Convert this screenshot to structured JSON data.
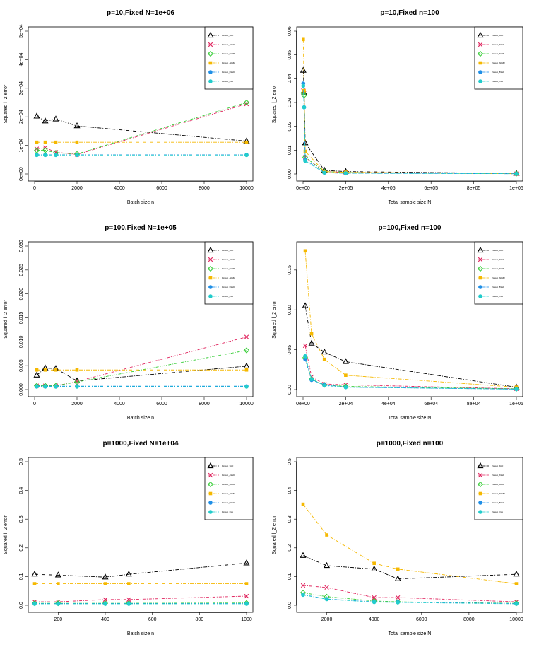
{
  "figure": {
    "series_names": [
      "Poisson_SGD",
      "Poisson_ASGD",
      "Poisson_SGDB",
      "Poisson_ADMM",
      "Poisson_BSGD",
      "Poisson_OLS"
    ]
  },
  "colors": {
    "black": "#000000",
    "red": "#e0245e",
    "green": "#33cc33",
    "gold": "#f5b800",
    "blue": "#1f8fe6",
    "cyan": "#22cccc"
  },
  "chart_data": [
    {
      "type": "line",
      "title": "p=10,Fixed N=1e+06",
      "xlabel": "Batch size n",
      "ylabel": "Squared l_2 error",
      "x": [
        100,
        500,
        1000,
        2000,
        10000
      ],
      "xlim": [
        0,
        10000
      ],
      "ylim": [
        0,
        0.0005
      ],
      "xticks": [
        0,
        2000,
        4000,
        6000,
        8000,
        10000
      ],
      "xtick_labels": [
        "0",
        "2000",
        "4000",
        "6000",
        "8000",
        "10000"
      ],
      "yticks": [
        0,
        0.0001,
        0.0002,
        0.0003,
        0.0004,
        0.0005
      ],
      "ytick_labels": [
        "0e+00",
        "1e−04",
        "2e−04",
        "3e−04",
        "4e−04",
        "5e−04"
      ],
      "legend_position": "top-right",
      "series": [
        {
          "name": "Poisson_SGD",
          "marker": "triangle",
          "color": "black",
          "values": [
            0.000202,
            0.000185,
            0.000192,
            0.000168,
            0.000115
          ]
        },
        {
          "name": "Poisson_ASGD",
          "marker": "cross",
          "color": "red",
          "values": [
            8.8e-05,
            9.2e-05,
            7.6e-05,
            6.8e-05,
            0.000245
          ]
        },
        {
          "name": "Poisson_SGDB",
          "marker": "diamond",
          "color": "green",
          "values": [
            8.2e-05,
            8.3e-05,
            7.4e-05,
            7e-05,
            0.00025
          ]
        },
        {
          "name": "Poisson_ADMM",
          "marker": "square",
          "color": "gold",
          "values": [
            0.000111,
            0.000111,
            0.000111,
            0.000111,
            0.000111
          ]
        },
        {
          "name": "Poisson_BSGD",
          "marker": "circle",
          "color": "blue",
          "values": [
            6.7e-05,
            6.7e-05,
            6.7e-05,
            6.7e-05,
            6.7e-05
          ]
        },
        {
          "name": "Poisson_OLS",
          "marker": "circle",
          "color": "cyan",
          "values": [
            6.6e-05,
            6.6e-05,
            6.6e-05,
            6.6e-05,
            6.6e-05
          ]
        }
      ]
    },
    {
      "type": "line",
      "title": "p=10,Fixed n=100",
      "xlabel": "Total sample size N",
      "ylabel": "Squared l_2 error",
      "x": [
        1000,
        5000,
        10000,
        100000,
        200000,
        1000000
      ],
      "xlim": [
        0,
        1000000
      ],
      "ylim": [
        0,
        0.06
      ],
      "xticks": [
        0,
        200000,
        400000,
        600000,
        800000,
        1000000
      ],
      "xtick_labels": [
        "0e+00",
        "2e+05",
        "4e+05",
        "6e+05",
        "8e+05",
        "1e+06"
      ],
      "yticks": [
        0,
        0.01,
        0.02,
        0.03,
        0.04,
        0.05,
        0.06
      ],
      "ytick_labels": [
        "0.00",
        "0.01",
        "0.02",
        "0.03",
        "0.04",
        "0.05",
        "0.06"
      ],
      "legend_position": "top-right",
      "series": [
        {
          "name": "Poisson_SGD",
          "marker": "triangle",
          "color": "black",
          "values": [
            0.0435,
            0.034,
            0.013,
            0.0015,
            0.001,
            0.0002
          ]
        },
        {
          "name": "Poisson_ASGD",
          "marker": "cross",
          "color": "red",
          "values": [
            0.035,
            0.034,
            0.007,
            0.001,
            0.0006,
            0.0001
          ]
        },
        {
          "name": "Poisson_SGDB",
          "marker": "diamond",
          "color": "green",
          "values": [
            0.034,
            0.033,
            0.007,
            0.001,
            0.0006,
            0.0001
          ]
        },
        {
          "name": "Poisson_ADMM",
          "marker": "square",
          "color": "gold",
          "values": [
            0.0565,
            0.035,
            0.0095,
            0.001,
            0.0007,
            0.0001
          ]
        },
        {
          "name": "Poisson_BSGD",
          "marker": "circle",
          "color": "blue",
          "values": [
            0.038,
            0.028,
            0.006,
            0.0005,
            0.0003,
            0.0001
          ]
        },
        {
          "name": "Poisson_OLS",
          "marker": "circle",
          "color": "cyan",
          "values": [
            0.037,
            0.028,
            0.0055,
            0.0005,
            0.0003,
            0.0001
          ]
        }
      ]
    },
    {
      "type": "line",
      "title": "p=100,Fixed N=1e+05",
      "xlabel": "Batch size n",
      "ylabel": "Squared l_2 error",
      "x": [
        100,
        500,
        1000,
        2000,
        10000
      ],
      "xlim": [
        0,
        10000
      ],
      "ylim": [
        0,
        0.03
      ],
      "xticks": [
        0,
        2000,
        4000,
        6000,
        8000,
        10000
      ],
      "xtick_labels": [
        "0",
        "2000",
        "4000",
        "6000",
        "8000",
        "10000"
      ],
      "yticks": [
        0,
        0.005,
        0.01,
        0.015,
        0.02,
        0.025,
        0.03
      ],
      "ytick_labels": [
        "0.000",
        "0.005",
        "0.010",
        "0.015",
        "0.020",
        "0.025",
        "0.030"
      ],
      "legend_position": "top-right",
      "series": [
        {
          "name": "Poisson_SGD",
          "marker": "triangle",
          "color": "black",
          "values": [
            0.003,
            0.0045,
            0.0044,
            0.0018,
            0.0049
          ]
        },
        {
          "name": "Poisson_ASGD",
          "marker": "cross",
          "color": "red",
          "values": [
            0.0008,
            0.0008,
            0.0008,
            0.0017,
            0.011
          ]
        },
        {
          "name": "Poisson_SGDB",
          "marker": "diamond",
          "color": "green",
          "values": [
            0.0008,
            0.0008,
            0.0008,
            0.0016,
            0.0082
          ]
        },
        {
          "name": "Poisson_ADMM",
          "marker": "square",
          "color": "gold",
          "values": [
            0.0041,
            0.0041,
            0.0041,
            0.0041,
            0.0041
          ]
        },
        {
          "name": "Poisson_BSGD",
          "marker": "circle",
          "color": "blue",
          "values": [
            0.0007,
            0.0007,
            0.0007,
            0.0007,
            0.0007
          ]
        },
        {
          "name": "Poisson_OLS",
          "marker": "circle",
          "color": "cyan",
          "values": [
            0.0006,
            0.0006,
            0.0006,
            0.0006,
            0.0006
          ]
        }
      ]
    },
    {
      "type": "line",
      "title": "p=100,Fixed n=100",
      "xlabel": "Total sample size N",
      "ylabel": "Squared l_2 error",
      "x": [
        1000,
        4000,
        10000,
        20000,
        100000
      ],
      "xlim": [
        0,
        100000
      ],
      "ylim": [
        0,
        0.18
      ],
      "xticks": [
        0,
        20000,
        40000,
        60000,
        80000,
        100000
      ],
      "xtick_labels": [
        "0e+00",
        "2e+04",
        "4e+04",
        "6e+04",
        "8e+04",
        "1e+05"
      ],
      "yticks": [
        0,
        0.05,
        0.1,
        0.15
      ],
      "ytick_labels": [
        "0.00",
        "0.05",
        "0.10",
        "0.15"
      ],
      "legend_position": "top-right",
      "series": [
        {
          "name": "Poisson_SGD",
          "marker": "triangle",
          "color": "black",
          "values": [
            0.105,
            0.058,
            0.047,
            0.035,
            0.003
          ]
        },
        {
          "name": "Poisson_ASGD",
          "marker": "cross",
          "color": "red",
          "values": [
            0.055,
            0.016,
            0.007,
            0.006,
            0.001
          ]
        },
        {
          "name": "Poisson_SGDB",
          "marker": "diamond",
          "color": "green",
          "values": [
            0.04,
            0.013,
            0.006,
            0.004,
            0.001
          ]
        },
        {
          "name": "Poisson_ADMM",
          "marker": "square",
          "color": "gold",
          "values": [
            0.174,
            0.07,
            0.038,
            0.018,
            0.003
          ]
        },
        {
          "name": "Poisson_BSGD",
          "marker": "circle",
          "color": "blue",
          "values": [
            0.038,
            0.012,
            0.006,
            0.003,
            0.0005
          ]
        },
        {
          "name": "Poisson_OLS",
          "marker": "circle",
          "color": "cyan",
          "values": [
            0.042,
            0.013,
            0.005,
            0.003,
            0.0005
          ]
        }
      ]
    },
    {
      "type": "line",
      "title": "p=1000,Fixed N=1e+04",
      "xlabel": "Batch size n",
      "ylabel": "Squared l_2 error",
      "x": [
        100,
        200,
        400,
        500,
        1000
      ],
      "xlim": [
        100,
        1000
      ],
      "ylim": [
        0,
        0.5
      ],
      "xticks": [
        200,
        400,
        600,
        800,
        1000
      ],
      "xtick_labels": [
        "200",
        "400",
        "600",
        "800",
        "1000"
      ],
      "yticks": [
        0,
        0.1,
        0.2,
        0.3,
        0.4,
        0.5
      ],
      "ytick_labels": [
        "0.0",
        "0.1",
        "0.2",
        "0.3",
        "0.4",
        "0.5"
      ],
      "legend_position": "top-right",
      "series": [
        {
          "name": "Poisson_SGD",
          "marker": "triangle",
          "color": "black",
          "values": [
            0.108,
            0.105,
            0.098,
            0.108,
            0.147
          ]
        },
        {
          "name": "Poisson_ASGD",
          "marker": "cross",
          "color": "red",
          "values": [
            0.012,
            0.012,
            0.02,
            0.02,
            0.032
          ]
        },
        {
          "name": "Poisson_SGDB",
          "marker": "diamond",
          "color": "green",
          "values": [
            0.007,
            0.007,
            0.007,
            0.007,
            0.008
          ]
        },
        {
          "name": "Poisson_ADMM",
          "marker": "square",
          "color": "gold",
          "values": [
            0.075,
            0.075,
            0.075,
            0.075,
            0.075
          ]
        },
        {
          "name": "Poisson_BSGD",
          "marker": "circle",
          "color": "blue",
          "values": [
            0.006,
            0.006,
            0.006,
            0.006,
            0.006
          ]
        },
        {
          "name": "Poisson_OLS",
          "marker": "circle",
          "color": "cyan",
          "values": [
            0.005,
            0.005,
            0.005,
            0.005,
            0.005
          ]
        }
      ]
    },
    {
      "type": "line",
      "title": "p=1000,Fixed n=100",
      "xlabel": "Total sample size N",
      "ylabel": "Squared l_2 error",
      "x": [
        1000,
        2000,
        4000,
        5000,
        10000
      ],
      "xlim": [
        1000,
        10000
      ],
      "ylim": [
        0,
        0.5
      ],
      "xticks": [
        2000,
        4000,
        6000,
        8000,
        10000
      ],
      "xtick_labels": [
        "2000",
        "4000",
        "6000",
        "8000",
        "10000"
      ],
      "yticks": [
        0,
        0.1,
        0.2,
        0.3,
        0.4,
        0.5
      ],
      "ytick_labels": [
        "0.0",
        "0.1",
        "0.2",
        "0.3",
        "0.4",
        "0.5"
      ],
      "legend_position": "top-right",
      "series": [
        {
          "name": "Poisson_SGD",
          "marker": "triangle",
          "color": "black",
          "values": [
            0.173,
            0.138,
            0.126,
            0.092,
            0.108
          ]
        },
        {
          "name": "Poisson_ASGD",
          "marker": "cross",
          "color": "red",
          "values": [
            0.069,
            0.062,
            0.027,
            0.027,
            0.012
          ]
        },
        {
          "name": "Poisson_SGDB",
          "marker": "diamond",
          "color": "green",
          "values": [
            0.044,
            0.03,
            0.015,
            0.012,
            0.007
          ]
        },
        {
          "name": "Poisson_ADMM",
          "marker": "square",
          "color": "gold",
          "values": [
            0.352,
            0.245,
            0.146,
            0.126,
            0.075
          ]
        },
        {
          "name": "Poisson_BSGD",
          "marker": "circle",
          "color": "blue",
          "values": [
            0.037,
            0.022,
            0.012,
            0.011,
            0.006
          ]
        },
        {
          "name": "Poisson_OLS",
          "marker": "circle",
          "color": "cyan",
          "values": [
            0.036,
            0.021,
            0.011,
            0.01,
            0.005
          ]
        }
      ]
    }
  ]
}
